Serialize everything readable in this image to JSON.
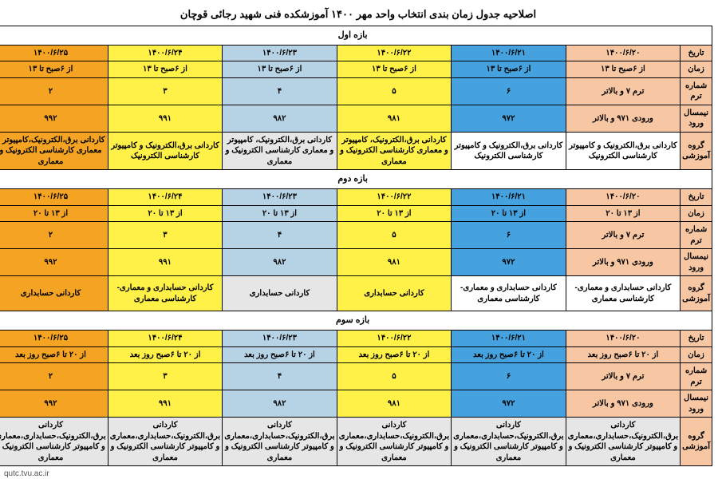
{
  "title": "اصلاحیه جدول زمان بندی انتخاب واحد مهر ۱۴۰۰ آموزشکده فنی شهید رجائی قوچان",
  "footer": "qutc.tvu.ac.ir",
  "row_labels": [
    "تاریخ",
    "زمان",
    "شماره ترم",
    "نیمسال ورود",
    "گروه آموزشی"
  ],
  "col_colors": [
    "c-peach",
    "c-blue",
    "c-yellow",
    "c-lblue",
    "c-yellow",
    "c-orange"
  ],
  "sections": [
    {
      "header": "بازه اول",
      "rows": [
        [
          "۱۴۰۰/۶/۲۰",
          "۱۴۰۰/۶/۲۱",
          "۱۴۰۰/۶/۲۲",
          "۱۴۰۰/۶/۲۳",
          "۱۴۰۰/۶/۲۴",
          "۱۴۰۰/۶/۲۵"
        ],
        [
          "از ۶صبح تا ۱۳",
          "از ۶صبح تا ۱۳",
          "از ۶صبح تا ۱۳",
          "از ۶صبح تا ۱۳",
          "از ۶صبح تا ۱۳",
          "از ۶صبح تا ۱۳"
        ],
        [
          "ترم ۷ و بالاتر",
          "۶",
          "۵",
          "۴",
          "۳",
          "۲"
        ],
        [
          "ورودی ۹۷۱ و بالاتر",
          "۹۷۲",
          "۹۸۱",
          "۹۸۲",
          "۹۹۱",
          "۹۹۲"
        ],
        [
          "کاردانی برق،الکترونیک و کامپیوتر کارشناسی الکترونیک",
          "کاردانی برق،الکترونیک و کامپیوتر کارشناسی الکترونیک",
          "کاردانی برق،الکترونیک، کامپیوتر و معماری  کارشناسی الکترونیک و معماری",
          "کاردانی برق،الکترونیک، کامپیوتر و معماری  کارشناسی الکترونیک و معماری",
          "کاردانی برق،الکترونیک و کامپیوتر کارشناسی الکترونیک",
          "کاردانی برق،الکترونیک،کامپیوتر و معماری  کارشناسی الکترونیک و معماری"
        ]
      ],
      "group_row_colors": [
        "c-white",
        "c-white",
        "c-yellow",
        "c-grey",
        "c-yellow",
        "c-orange"
      ]
    },
    {
      "header": "بازه دوم",
      "rows": [
        [
          "۱۴۰۰/۶/۲۰",
          "۱۴۰۰/۶/۲۱",
          "۱۴۰۰/۶/۲۲",
          "۱۴۰۰/۶/۲۳",
          "۱۴۰۰/۶/۲۴",
          "۱۴۰۰/۶/۲۵"
        ],
        [
          "از ۱۳ تا ۲۰",
          "از ۱۳ تا ۲۰",
          "از ۱۳ تا ۲۰",
          "از ۱۳ تا ۲۰",
          "از ۱۳ تا ۲۰",
          "از ۱۳ تا ۲۰"
        ],
        [
          "ترم ۷ و بالاتر",
          "۶",
          "۵",
          "۴",
          "۳",
          "۲"
        ],
        [
          "ورودی ۹۷۱ و بالاتر",
          "۹۷۲",
          "۹۸۱",
          "۹۸۲",
          "۹۹۱",
          "۹۹۲"
        ],
        [
          "کاردانی حسابداری و معماری- کارشناسی معماری",
          "کاردانی حسابداری و معماری- کارشناسی معماری",
          "کاردانی حسابداری",
          "کاردانی حسابداری",
          "کاردانی حسابداری و معماری- کارشناسی معماری",
          "کاردانی حسابداری"
        ]
      ],
      "group_row_colors": [
        "c-white",
        "c-white",
        "c-yellow",
        "c-grey",
        "c-yellow",
        "c-orange"
      ]
    },
    {
      "header": "بازه سوم",
      "rows": [
        [
          "۱۴۰۰/۶/۲۰",
          "۱۴۰۰/۶/۲۱",
          "۱۴۰۰/۶/۲۲",
          "۱۴۰۰/۶/۲۳",
          "۱۴۰۰/۶/۲۴",
          "۱۴۰۰/۶/۲۵"
        ],
        [
          "از ۲۰ تا ۶صبح روز بعد",
          "از ۲۰ تا ۶صبح روز بعد",
          "از ۲۰ تا ۶صبح روز بعد",
          "از ۲۰ تا ۶صبح روز بعد",
          "از ۲۰ تا ۶صبح روز بعد",
          "از ۲۰ تا ۶صبح روز بعد"
        ],
        [
          "ترم ۷ و بالاتر",
          "۶",
          "۵",
          "۴",
          "۳",
          "۲"
        ],
        [
          "ورودی ۹۷۱ و بالاتر",
          "۹۷۲",
          "۹۸۱",
          "۹۸۲",
          "۹۹۱",
          "۹۹۲"
        ],
        [
          "کاردانی برق،الکترونیک،حسابداری،معماری و کامپیوتر  کارشناسی الکترونیک و معماری",
          "کاردانی برق،الکترونیک،حسابداری،معماری و کامپیوتر  کارشناسی الکترونیک و معماری",
          "کاردانی برق،الکترونیک،حسابداری،معماری و کامپیوتر  کارشناسی الکترونیک و معماری",
          "کاردانی برق،الکترونیک،حسابداری،معماری و کامپیوتر  کارشناسی الکترونیک و معماری",
          "کاردانی برق،الکترونیک،حسابداری،معماری و کامپیوتر  کارشناسی الکترونیک و معماری",
          "کاردانی برق،الکترونیک،حسابداری،معماری و کامپیوتر  کارشناسی الکترونیک و معماری"
        ]
      ],
      "group_row_colors": [
        "c-grey",
        "c-grey",
        "c-grey",
        "c-grey",
        "c-grey",
        "c-grey"
      ]
    }
  ]
}
